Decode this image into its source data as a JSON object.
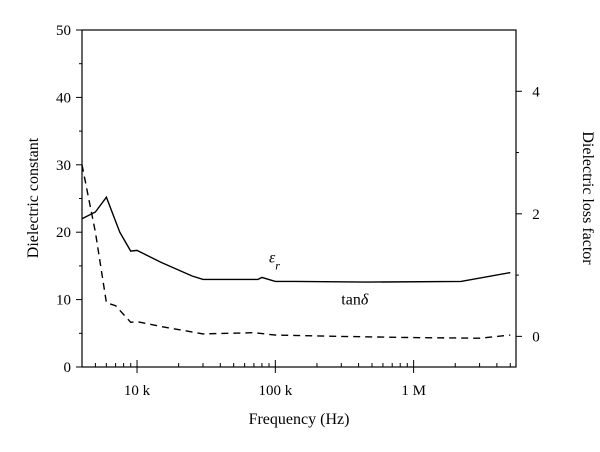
{
  "chart_data": {
    "type": "line",
    "xlabel": "Frequency (Hz)",
    "ylabel_left": "Dielectric constant",
    "ylabel_right": "Dielectric loss factor",
    "x_scale": "log",
    "xlim": [
      4000,
      5500000
    ],
    "ylim_left": [
      0,
      50
    ],
    "ylim_right": [
      -0.5,
      5.0
    ],
    "x_ticks": [
      {
        "value": 10000,
        "label": "10 k"
      },
      {
        "value": 100000,
        "label": "100 k"
      },
      {
        "value": 1000000,
        "label": "1 M"
      }
    ],
    "y_left_ticks": [
      0,
      10,
      20,
      30,
      40,
      50
    ],
    "y_right_ticks": [
      0,
      2,
      4
    ],
    "grid": false,
    "series": [
      {
        "name": "εr",
        "axis": "left",
        "style": "solid",
        "x": [
          4000,
          5000,
          6000,
          7500,
          9000,
          10000,
          15000,
          25000,
          30000,
          75000,
          80000,
          100000,
          140000,
          450000,
          2200000,
          5000000
        ],
        "y": [
          22,
          23,
          25.2,
          20,
          17.2,
          17.3,
          15.5,
          13.5,
          13,
          13,
          13.3,
          12.7,
          12.7,
          12.6,
          12.7,
          14
        ]
      },
      {
        "name": "tanδ",
        "axis": "right",
        "style": "dashed",
        "x": [
          4000,
          5000,
          6000,
          7000,
          9000,
          10000,
          15000,
          30000,
          70000,
          100000,
          300000,
          1000000,
          3000000,
          5000000
        ],
        "y": [
          2.8,
          1.7,
          0.55,
          0.5,
          0.23,
          0.24,
          0.16,
          0.04,
          0.06,
          0.02,
          0.0,
          -0.02,
          -0.03,
          0.02
        ]
      }
    ],
    "annotations": [
      {
        "symbol": "ε",
        "subscript": "r",
        "x": 90000,
        "y_left": 15.5
      },
      {
        "base": "tan",
        "symbol": "δ",
        "x": 300000,
        "y_left": 9.3
      }
    ]
  }
}
